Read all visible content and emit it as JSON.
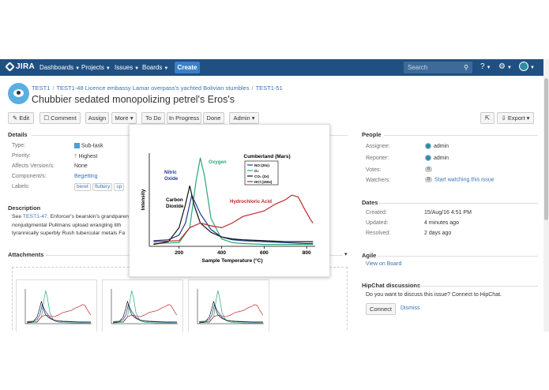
{
  "nav": {
    "logo": "JIRA",
    "items": [
      {
        "label": "Dashboards"
      },
      {
        "label": "Projects"
      },
      {
        "label": "Issues"
      },
      {
        "label": "Boards"
      }
    ],
    "create_label": "Create",
    "search_placeholder": "Search"
  },
  "breadcrumb": {
    "project": "TEST1",
    "parent": "TEST1-48 Licence embassy Lamar overpass's yachted Bolivian stumbles",
    "issue": "TEST1-51"
  },
  "issue_title": "Chubbier sedated monopolizing petrel's Eros's",
  "toolbar": {
    "edit": "Edit",
    "comment": "Comment",
    "assign": "Assign",
    "more": "More",
    "todo": "To Do",
    "in_progress": "In Progress",
    "done": "Done",
    "admin": "Admin",
    "export": "Export"
  },
  "details": {
    "heading": "Details",
    "type_label": "Type:",
    "type_value": "Sub-task",
    "priority_label": "Priority:",
    "priority_value": "Highest",
    "affects_label": "Affects Version/s:",
    "affects_value": "None",
    "component_label": "Component/s:",
    "component_value": "Begetting",
    "labels_label": "Labels:",
    "labels": [
      "beret",
      "fluttery",
      "sp"
    ]
  },
  "description": {
    "heading": "Description",
    "link": "TEST1-47",
    "line1_prefix": "See ",
    "line1_suffix": ". Enforcer's bearskin's grandparen",
    "line2": "nonjudgmental Pullmans upload wrangling lith",
    "line3": "tyrannically superbly Rush tubercular metals Fa"
  },
  "attachments": {
    "heading": "Attachments"
  },
  "people": {
    "heading": "People",
    "assignee_label": "Assignee:",
    "assignee": "admin",
    "reporter_label": "Reporter:",
    "reporter": "admin",
    "votes_label": "Votes:",
    "votes": "0",
    "watchers_label": "Watchers:",
    "watchers": "0",
    "watch_link": "Start watching this issue"
  },
  "dates": {
    "heading": "Dates",
    "created_label": "Created:",
    "created": "15/Aug/16 4:51 PM",
    "updated_label": "Updated:",
    "updated": "4 minutes ago",
    "resolved_label": "Resolved:",
    "resolved": "2 days ago"
  },
  "agile": {
    "heading": "Agile",
    "link": "View on Board"
  },
  "hipchat": {
    "heading": "HipChat discussions",
    "text": "Do you want to discuss this issue? Connect to HipChat.",
    "connect": "Connect",
    "dismiss": "Dismiss"
  },
  "chart_data": {
    "type": "line",
    "title": "Cumberland (Mars)",
    "xlabel": "Sample Temperature (°C)",
    "ylabel": "Intensity",
    "xlim": [
      60,
      840
    ],
    "x_ticks": [
      200,
      400,
      600,
      800
    ],
    "legend": [
      "NO (20x)",
      "O₂",
      "CO₂ (2x)",
      "HCl (150x)"
    ],
    "legend_position": "top-right",
    "annotations": [
      "Nitric Oxide",
      "Oxygen",
      "Carbon Dioxide",
      "Hydrochloric Acid"
    ],
    "series": [
      {
        "name": "NO (20x)",
        "color": "#1f3a93",
        "x": [
          80,
          150,
          200,
          230,
          260,
          300,
          350,
          400,
          450,
          500,
          600,
          700,
          800,
          830
        ],
        "y": [
          0.06,
          0.07,
          0.12,
          0.25,
          0.55,
          0.35,
          0.18,
          0.1,
          0.07,
          0.06,
          0.05,
          0.04,
          0.03,
          0.03
        ]
      },
      {
        "name": "O₂",
        "color": "#2ca67a",
        "x": [
          80,
          200,
          250,
          280,
          300,
          320,
          350,
          400,
          450,
          500,
          600,
          700,
          800,
          830
        ],
        "y": [
          0.03,
          0.04,
          0.2,
          0.7,
          0.95,
          0.75,
          0.3,
          0.08,
          0.04,
          0.03,
          0.02,
          0.02,
          0.02,
          0.02
        ]
      },
      {
        "name": "CO₂ (2x)",
        "color": "#111111",
        "x": [
          80,
          150,
          200,
          230,
          250,
          270,
          300,
          350,
          400,
          450,
          500,
          600,
          700,
          800,
          830
        ],
        "y": [
          0.02,
          0.05,
          0.2,
          0.45,
          0.65,
          0.45,
          0.25,
          0.15,
          0.1,
          0.08,
          0.07,
          0.06,
          0.05,
          0.05,
          0.05
        ]
      },
      {
        "name": "HCl (150x)",
        "color": "#c0282d",
        "x": [
          80,
          200,
          250,
          300,
          350,
          400,
          450,
          500,
          550,
          600,
          650,
          700,
          730,
          760,
          790,
          820,
          830
        ],
        "y": [
          0.05,
          0.06,
          0.2,
          0.25,
          0.22,
          0.2,
          0.25,
          0.32,
          0.35,
          0.38,
          0.45,
          0.5,
          0.55,
          0.53,
          0.4,
          0.28,
          0.25
        ]
      }
    ]
  }
}
